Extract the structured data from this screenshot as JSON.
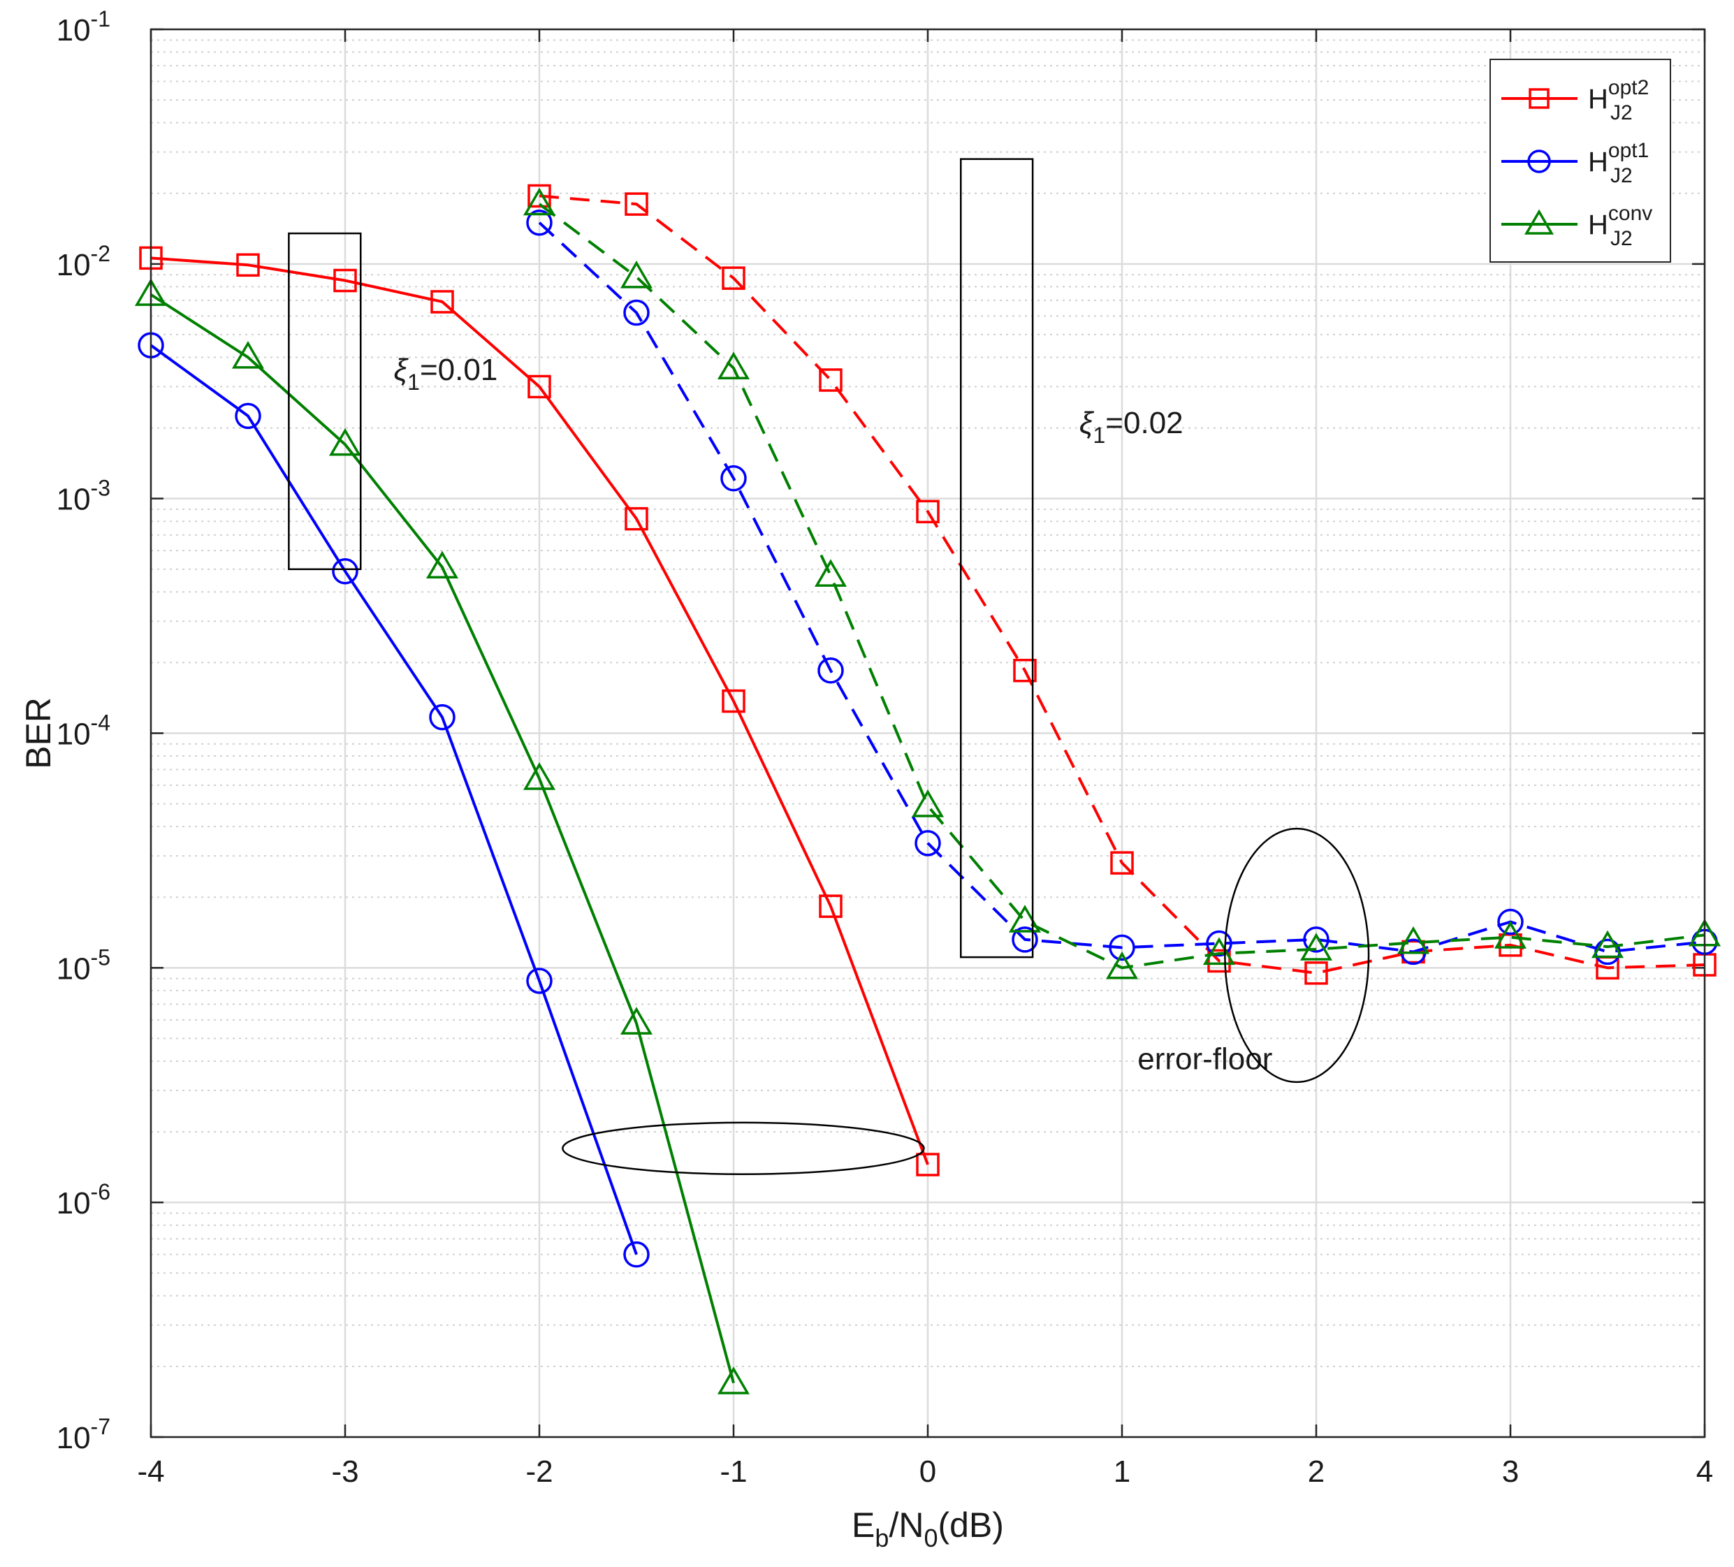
{
  "chart_data": {
    "type": "line",
    "title": "",
    "xlabel": {
      "base": "E",
      "sub1": "b",
      "mid": "/N",
      "sub2": "0",
      "tail": "(dB)"
    },
    "ylabel": "BER",
    "xlim": [
      -4,
      4
    ],
    "ylim": [
      1e-07,
      0.1
    ],
    "yscale": "log",
    "grid": true,
    "x_ticks": [
      -4,
      -3,
      -2,
      -1,
      0,
      1,
      2,
      3,
      4
    ],
    "x_tick_labels": [
      "-4",
      "-3",
      "-2",
      "-1",
      "0",
      "1",
      "2",
      "3",
      "4"
    ],
    "y_ticks": [
      {
        "value": 1e-07,
        "base": "10",
        "exp": "-7"
      },
      {
        "value": 1e-06,
        "base": "10",
        "exp": "-6"
      },
      {
        "value": 1e-05,
        "base": "10",
        "exp": "-5"
      },
      {
        "value": 0.0001,
        "base": "10",
        "exp": "-4"
      },
      {
        "value": 0.001,
        "base": "10",
        "exp": "-3"
      },
      {
        "value": 0.01,
        "base": "10",
        "exp": "-2"
      },
      {
        "value": 0.1,
        "base": "10",
        "exp": "-1"
      }
    ],
    "legend_position": "top-right",
    "legend": [
      {
        "base": "H",
        "sup": "opt2",
        "sub": "J2",
        "color": "#ff0000",
        "marker": "square"
      },
      {
        "base": "H",
        "sup": "opt1",
        "sub": "J2",
        "color": "#0000ff",
        "marker": "circle"
      },
      {
        "base": "H",
        "sup": "conv",
        "sub": "J2",
        "color": "#008000",
        "marker": "triangle"
      }
    ],
    "series": [
      {
        "name": "H_J2^opt2, xi1=0.01",
        "color": "#ff0000",
        "marker": "square",
        "dash": false,
        "x": [
          -4,
          -3.5,
          -3,
          -2.5,
          -2,
          -1.5,
          -1,
          -0.5,
          0
        ],
        "y": [
          0.0106,
          0.0099,
          0.0085,
          0.0069,
          0.003,
          0.00082,
          0.000137,
          1.83e-05,
          1.45e-06
        ]
      },
      {
        "name": "H_J2^opt1, xi1=0.01",
        "color": "#0000ff",
        "marker": "circle",
        "dash": false,
        "x": [
          -4,
          -3.5,
          -3,
          -2.5,
          -2,
          -1.5
        ],
        "y": [
          0.0045,
          0.00225,
          0.00049,
          0.000117,
          8.8e-06,
          6e-07
        ]
      },
      {
        "name": "H_J2^conv, xi1=0.01",
        "color": "#008000",
        "marker": "triangle",
        "dash": false,
        "x": [
          -4,
          -3.5,
          -3,
          -2.5,
          -2,
          -1.5,
          -1
        ],
        "y": [
          0.0074,
          0.004,
          0.0017,
          0.00051,
          6.4e-05,
          5.8e-06,
          1.7e-07
        ]
      },
      {
        "name": "H_J2^opt2, xi1=0.02",
        "color": "#ff0000",
        "marker": "square",
        "dash": true,
        "x": [
          -2,
          -1.5,
          -1,
          -0.5,
          0,
          0.5,
          1,
          1.5,
          2,
          2.5,
          3,
          3.5,
          4
        ],
        "y": [
          0.0195,
          0.018,
          0.0087,
          0.0032,
          0.00088,
          0.000185,
          2.8e-05,
          1.07e-05,
          9.5e-06,
          1.17e-05,
          1.25e-05,
          1e-05,
          1.03e-05
        ]
      },
      {
        "name": "H_J2^opt1, xi1=0.02",
        "color": "#0000ff",
        "marker": "circle",
        "dash": true,
        "x": [
          -2,
          -1.5,
          -1,
          -0.5,
          0,
          0.5,
          1,
          1.5,
          2,
          2.5,
          3,
          3.5,
          4
        ],
        "y": [
          0.015,
          0.0062,
          0.00122,
          0.000185,
          3.4e-05,
          1.32e-05,
          1.22e-05,
          1.27e-05,
          1.32e-05,
          1.17e-05,
          1.57e-05,
          1.17e-05,
          1.29e-05
        ]
      },
      {
        "name": "H_J2^conv, xi1=0.02",
        "color": "#008000",
        "marker": "triangle",
        "dash": true,
        "x": [
          -2,
          -1.5,
          -1,
          -0.5,
          0,
          0.5,
          1,
          1.5,
          2,
          2.5,
          3,
          3.5,
          4
        ],
        "y": [
          0.018,
          0.0088,
          0.0036,
          0.00047,
          4.9e-05,
          1.58e-05,
          1e-05,
          1.15e-05,
          1.2e-05,
          1.28e-05,
          1.35e-05,
          1.23e-05,
          1.38e-05
        ]
      }
    ],
    "annotations": [
      {
        "type": "text",
        "greek": "ξ",
        "sub": "1",
        "text": "=0.01",
        "x": -2.75,
        "y": 0.0032
      },
      {
        "type": "text",
        "greek": "ξ",
        "sub": "1",
        "text": "=0.02",
        "x": 0.78,
        "y": 0.0019
      },
      {
        "type": "text",
        "text": "error-floor",
        "x": 1.08,
        "y": 3.7e-06
      },
      {
        "type": "rect",
        "x0": -3.29,
        "x1": -2.92,
        "y0": 0.0005,
        "y1": 0.0135
      },
      {
        "type": "rect",
        "x0": 0.17,
        "x1": 0.54,
        "y0": 1.11e-05,
        "y1": 0.028
      },
      {
        "type": "ellipse",
        "cx": -0.95,
        "cy": 1.7e-06,
        "rx": 0.93,
        "ry_decades": 0.11
      },
      {
        "type": "ellipse",
        "cx": 1.9,
        "cy": 1.13e-05,
        "rx": 0.37,
        "ry_decades": 0.54
      }
    ]
  }
}
